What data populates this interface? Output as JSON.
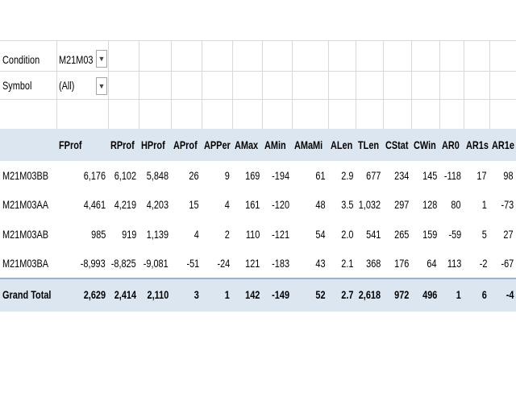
{
  "filters": [
    {
      "label": "Condition",
      "value": "M21M03"
    },
    {
      "label": "Symbol",
      "value": "(All)"
    }
  ],
  "table": {
    "columns": [
      "FProf",
      "RProf",
      "HProf",
      "AProf",
      "APPer",
      "AMax",
      "AMin",
      "AMaMi",
      "ALen",
      "TLen",
      "CStat",
      "CWin",
      "AR0",
      "AR1s",
      "AR1e"
    ],
    "rows": [
      {
        "label": "M21M03BB",
        "values": [
          "6,176",
          "6,102",
          "5,848",
          "26",
          "9",
          "169",
          "-194",
          "61",
          "2.9",
          "677",
          "234",
          "145",
          "-118",
          "17",
          "98"
        ]
      },
      {
        "label": "M21M03AA",
        "values": [
          "4,461",
          "4,219",
          "4,203",
          "15",
          "4",
          "161",
          "-120",
          "48",
          "3.5",
          "1,032",
          "297",
          "128",
          "80",
          "1",
          "-73"
        ]
      },
      {
        "label": "M21M03AB",
        "values": [
          "985",
          "919",
          "1,139",
          "4",
          "2",
          "110",
          "-121",
          "54",
          "2.0",
          "541",
          "265",
          "159",
          "-59",
          "5",
          "27"
        ]
      },
      {
        "label": "M21M03BA",
        "values": [
          "-8,993",
          "-8,825",
          "-9,081",
          "-51",
          "-24",
          "121",
          "-183",
          "43",
          "2.1",
          "368",
          "176",
          "64",
          "113",
          "-2",
          "-67"
        ]
      }
    ],
    "total": {
      "label": "Grand Total",
      "values": [
        "2,629",
        "2,414",
        "2,110",
        "3",
        "1",
        "142",
        "-149",
        "52",
        "2.7",
        "2,618",
        "972",
        "496",
        "1",
        "6",
        "-4"
      ]
    }
  }
}
